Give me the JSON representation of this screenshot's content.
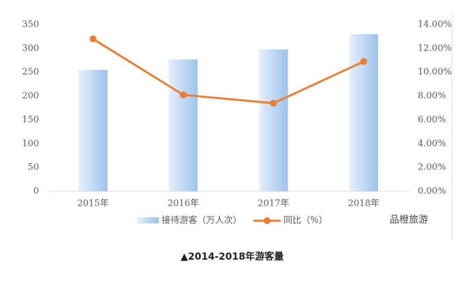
{
  "chart_data": {
    "type": "bar",
    "categories": [
      "2015年",
      "2016年",
      "2017年",
      "2018年"
    ],
    "series": [
      {
        "name": "接待游客（万人次）",
        "type": "bar",
        "color": "#9dc3ec",
        "values": [
          255,
          277,
          298,
          330
        ]
      },
      {
        "name": "同比（%）",
        "type": "line",
        "axis": "y2",
        "color": "#ed7d31",
        "values": [
          12.8,
          8.1,
          7.4,
          10.9
        ]
      }
    ],
    "ylim": [
      0,
      350
    ],
    "yticks": [
      0,
      50,
      100,
      150,
      200,
      250,
      300,
      350
    ],
    "y2lim": [
      0,
      14
    ],
    "y2ticks": [
      {
        "value": 0,
        "label": "0.00%"
      },
      {
        "value": 2,
        "label": "2.00%"
      },
      {
        "value": 4,
        "label": "4.00%"
      },
      {
        "value": 6,
        "label": "6.00%"
      },
      {
        "value": 8,
        "label": "8.00%"
      },
      {
        "value": 10,
        "label": "10.00%"
      },
      {
        "value": 12,
        "label": "12.00%"
      },
      {
        "value": 14,
        "label": "14.00%"
      }
    ],
    "legend": "bottom",
    "watermark": "品橙旅游",
    "caption": "▲2014-2018年游客量"
  }
}
